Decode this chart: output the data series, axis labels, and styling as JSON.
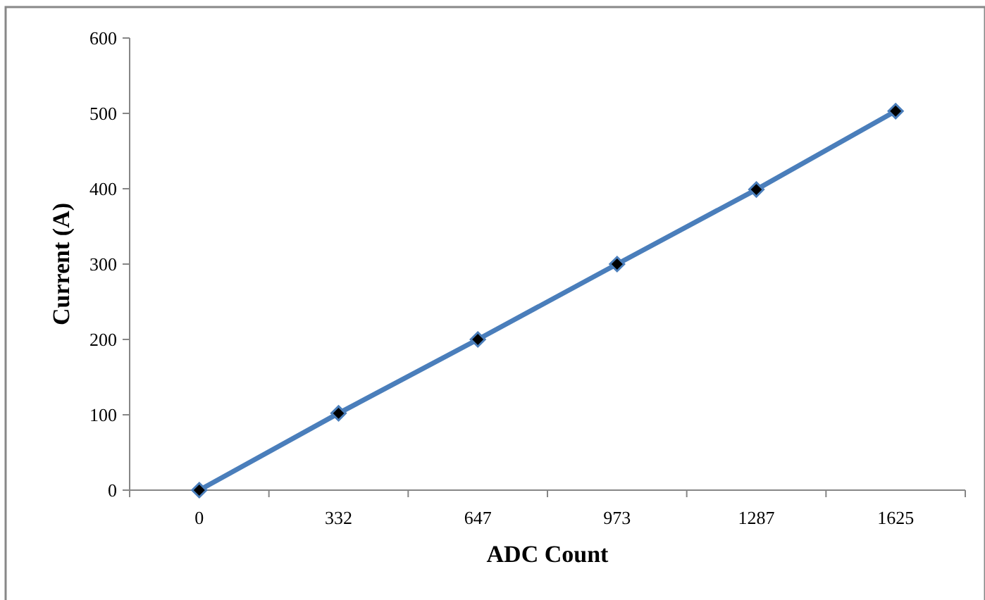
{
  "chart_data": {
    "type": "line",
    "xlabel": "ADC Count",
    "ylabel": "Current (A)",
    "categories": [
      "0",
      "332",
      "647",
      "973",
      "1287",
      "1625"
    ],
    "series": [
      {
        "color": "#4a7ebb",
        "values": [
          0,
          102,
          200,
          300,
          399,
          503
        ]
      }
    ],
    "ylim": [
      0,
      600
    ],
    "yticks": [
      0,
      100,
      200,
      300,
      400,
      500,
      600
    ],
    "marker": "diamond",
    "line_style": "solid",
    "grid": false
  }
}
